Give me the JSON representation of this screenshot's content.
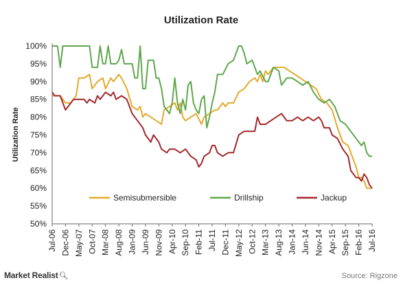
{
  "chart_data": {
    "type": "line",
    "title": "Utilization Rate",
    "xlabel": "",
    "ylabel": "Utilization Rate",
    "ylim": [
      50,
      100
    ],
    "ytick_labels": [
      "50%",
      "55%",
      "60%",
      "65%",
      "70%",
      "75%",
      "80%",
      "85%",
      "90%",
      "95%",
      "100%"
    ],
    "xlim": [
      0,
      120
    ],
    "x_tick_positions": [
      0,
      5,
      10,
      15,
      20,
      25,
      30,
      35,
      40,
      45,
      50,
      55,
      60,
      65,
      70,
      75,
      80,
      85,
      90,
      95,
      100,
      105,
      110,
      115,
      120
    ],
    "x_tick_labels": [
      "Jul-06",
      "Dec-06",
      "May-07",
      "Oct-07",
      "Mar-08",
      "Aug-08",
      "Jan-09",
      "Jun-09",
      "Nov-09",
      "Apr-10",
      "Sep-10",
      "Feb-11",
      "Jul-11",
      "Dec-11",
      "May-12",
      "Oct-12",
      "Mar-13",
      "Aug-13",
      "Jan-14",
      "Jun-14",
      "Nov-14",
      "Apr-15",
      "Sep-15",
      "Feb-16",
      "Jul-16"
    ],
    "grid": false,
    "legend": "bottom-center",
    "series": [
      {
        "name": "Semisubmersible",
        "color": "#e3a92a",
        "points": [
          [
            0,
            86
          ],
          [
            3,
            86
          ],
          [
            5,
            84
          ],
          [
            7,
            84
          ],
          [
            9,
            86
          ],
          [
            10,
            91
          ],
          [
            12,
            91
          ],
          [
            14,
            92
          ],
          [
            15,
            88
          ],
          [
            17,
            90
          ],
          [
            19,
            91
          ],
          [
            20,
            88
          ],
          [
            22,
            91
          ],
          [
            23,
            90
          ],
          [
            25,
            92
          ],
          [
            26,
            91
          ],
          [
            28,
            88
          ],
          [
            30,
            83
          ],
          [
            32,
            82
          ],
          [
            33,
            83
          ],
          [
            34,
            80
          ],
          [
            35,
            81
          ],
          [
            37,
            80
          ],
          [
            39,
            79
          ],
          [
            41,
            78
          ],
          [
            42,
            82
          ],
          [
            44,
            83
          ],
          [
            46,
            84
          ],
          [
            47,
            82
          ],
          [
            48,
            84
          ],
          [
            49,
            80
          ],
          [
            50,
            79
          ],
          [
            52,
            80
          ],
          [
            54,
            81
          ],
          [
            56,
            78
          ],
          [
            57,
            80
          ],
          [
            59,
            81
          ],
          [
            61,
            82
          ],
          [
            62,
            82
          ],
          [
            64,
            84
          ],
          [
            65,
            83
          ],
          [
            66,
            84
          ],
          [
            68,
            84
          ],
          [
            70,
            87
          ],
          [
            72,
            88
          ],
          [
            74,
            90
          ],
          [
            76,
            91
          ],
          [
            77,
            90
          ],
          [
            78,
            92
          ],
          [
            79,
            90
          ],
          [
            80,
            93
          ],
          [
            81,
            92
          ],
          [
            83,
            94
          ],
          [
            85,
            94
          ],
          [
            87,
            94
          ],
          [
            89,
            93
          ],
          [
            91,
            92
          ],
          [
            93,
            91
          ],
          [
            95,
            90
          ],
          [
            97,
            89
          ],
          [
            99,
            88
          ],
          [
            101,
            85
          ],
          [
            103,
            84
          ],
          [
            105,
            82
          ],
          [
            107,
            77
          ],
          [
            109,
            73
          ],
          [
            111,
            72
          ],
          [
            113,
            68
          ],
          [
            114,
            66
          ],
          [
            115,
            63
          ],
          [
            116,
            63
          ],
          [
            117,
            62
          ],
          [
            118,
            60
          ],
          [
            119,
            60
          ],
          [
            120,
            60
          ]
        ]
      },
      {
        "name": "Drillship",
        "color": "#5ea64b",
        "points": [
          [
            0,
            100
          ],
          [
            2,
            100
          ],
          [
            3,
            94
          ],
          [
            4,
            100
          ],
          [
            13,
            100
          ],
          [
            14,
            100
          ],
          [
            15,
            94
          ],
          [
            17,
            94
          ],
          [
            18,
            100
          ],
          [
            19,
            95
          ],
          [
            20,
            95
          ],
          [
            21,
            100
          ],
          [
            22,
            95
          ],
          [
            24,
            95
          ],
          [
            25,
            96
          ],
          [
            26,
            99
          ],
          [
            27,
            95
          ],
          [
            30,
            95
          ],
          [
            31,
            91
          ],
          [
            32,
            91
          ],
          [
            33,
            100
          ],
          [
            34,
            88
          ],
          [
            35,
            88
          ],
          [
            36,
            96
          ],
          [
            38,
            96
          ],
          [
            39,
            91
          ],
          [
            40,
            91
          ],
          [
            41,
            88
          ],
          [
            42,
            83
          ],
          [
            44,
            81
          ],
          [
            45,
            84
          ],
          [
            46,
            91
          ],
          [
            47,
            84
          ],
          [
            48,
            81
          ],
          [
            49,
            85
          ],
          [
            50,
            82
          ],
          [
            51,
            89
          ],
          [
            52,
            90
          ],
          [
            53,
            84
          ],
          [
            54,
            82
          ],
          [
            55,
            81
          ],
          [
            56,
            85
          ],
          [
            57,
            86
          ],
          [
            58,
            77
          ],
          [
            59,
            80
          ],
          [
            60,
            84
          ],
          [
            61,
            87
          ],
          [
            62,
            92
          ],
          [
            64,
            92
          ],
          [
            66,
            95
          ],
          [
            68,
            96
          ],
          [
            70,
            100
          ],
          [
            71,
            100
          ],
          [
            72,
            98
          ],
          [
            73,
            95
          ],
          [
            75,
            96
          ],
          [
            77,
            92
          ],
          [
            78,
            93
          ],
          [
            80,
            90
          ],
          [
            81,
            90
          ],
          [
            82,
            92
          ],
          [
            83,
            94
          ],
          [
            85,
            93
          ],
          [
            86,
            89
          ],
          [
            88,
            91
          ],
          [
            90,
            91
          ],
          [
            92,
            90
          ],
          [
            94,
            89
          ],
          [
            96,
            90
          ],
          [
            98,
            87
          ],
          [
            100,
            85
          ],
          [
            102,
            84
          ],
          [
            104,
            85
          ],
          [
            106,
            83
          ],
          [
            108,
            79
          ],
          [
            110,
            78
          ],
          [
            112,
            76
          ],
          [
            113,
            75
          ],
          [
            114,
            74
          ],
          [
            115,
            73
          ],
          [
            116,
            72
          ],
          [
            117,
            73
          ],
          [
            118,
            70
          ],
          [
            119,
            69
          ],
          [
            120,
            69
          ]
        ]
      },
      {
        "name": "Jackup",
        "color": "#a3262a",
        "points": [
          [
            0,
            87
          ],
          [
            1,
            86
          ],
          [
            3,
            86
          ],
          [
            4,
            84
          ],
          [
            5,
            82
          ],
          [
            6,
            83
          ],
          [
            8,
            85
          ],
          [
            10,
            85
          ],
          [
            12,
            85
          ],
          [
            13,
            84
          ],
          [
            14,
            85
          ],
          [
            16,
            84
          ],
          [
            17,
            86
          ],
          [
            18,
            85
          ],
          [
            20,
            87
          ],
          [
            22,
            86
          ],
          [
            23,
            87
          ],
          [
            24,
            85
          ],
          [
            26,
            86
          ],
          [
            28,
            85
          ],
          [
            29,
            83
          ],
          [
            30,
            81
          ],
          [
            32,
            79
          ],
          [
            34,
            77
          ],
          [
            35,
            75
          ],
          [
            37,
            73
          ],
          [
            38,
            75
          ],
          [
            40,
            73
          ],
          [
            41,
            71
          ],
          [
            43,
            70
          ],
          [
            44,
            71
          ],
          [
            46,
            71
          ],
          [
            48,
            70
          ],
          [
            50,
            71
          ],
          [
            52,
            69
          ],
          [
            54,
            68
          ],
          [
            55,
            66
          ],
          [
            56,
            67
          ],
          [
            57,
            69
          ],
          [
            59,
            70
          ],
          [
            60,
            72
          ],
          [
            61,
            72
          ],
          [
            62,
            70
          ],
          [
            64,
            69
          ],
          [
            66,
            70
          ],
          [
            68,
            70
          ],
          [
            70,
            75
          ],
          [
            72,
            76
          ],
          [
            74,
            76
          ],
          [
            76,
            76
          ],
          [
            77,
            80
          ],
          [
            78,
            78
          ],
          [
            80,
            78
          ],
          [
            82,
            79
          ],
          [
            84,
            80
          ],
          [
            86,
            81
          ],
          [
            88,
            79
          ],
          [
            90,
            79
          ],
          [
            92,
            80
          ],
          [
            94,
            79
          ],
          [
            96,
            80
          ],
          [
            98,
            79
          ],
          [
            100,
            80
          ],
          [
            101,
            79
          ],
          [
            102,
            77
          ],
          [
            104,
            77
          ],
          [
            105,
            75
          ],
          [
            107,
            74
          ],
          [
            109,
            71
          ],
          [
            110,
            70
          ],
          [
            111,
            69
          ],
          [
            112,
            65
          ],
          [
            113,
            64
          ],
          [
            114,
            63
          ],
          [
            115,
            63
          ],
          [
            116,
            62
          ],
          [
            117,
            64
          ],
          [
            118,
            63
          ],
          [
            119,
            61
          ],
          [
            120,
            60
          ]
        ]
      }
    ]
  },
  "footer": {
    "brand": "Market Realist",
    "source": "Source: Rigzone"
  },
  "icons": {
    "brand_icon": "magnifier-icon"
  }
}
